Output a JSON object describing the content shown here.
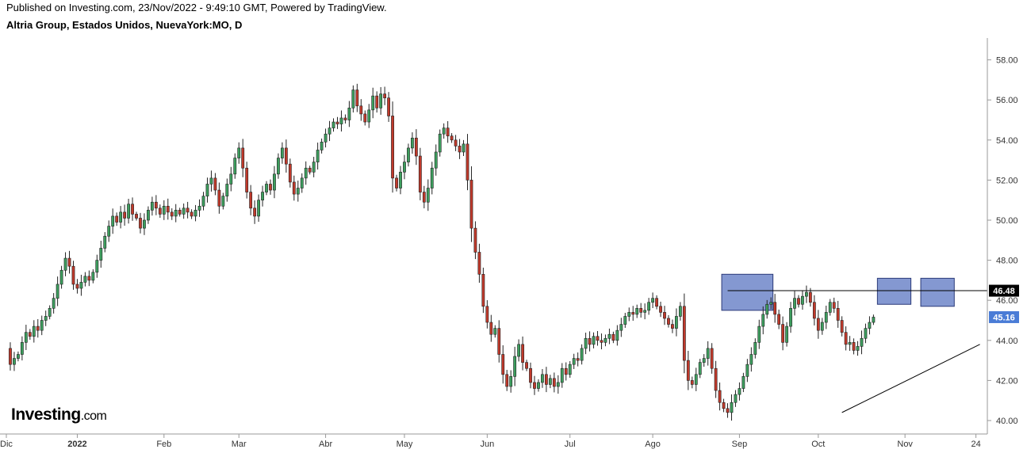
{
  "header": {
    "published": "Published on Investing.com, 23/Nov/2022 - 9:49:10 GMT, Powered by TradingView.",
    "symbol": "Altria Group, Estados Unidos, NuevaYork:MO, D"
  },
  "logo": {
    "text": "Investing",
    "suffix": ".com"
  },
  "chart_data": {
    "type": "candlestick",
    "ylim": [
      39.6,
      58.8
    ],
    "y_ticks": [
      "40.00",
      "42.00",
      "44.00",
      "46.00",
      "48.00",
      "50.00",
      "52.00",
      "54.00",
      "56.00",
      "58.00"
    ],
    "x_ticks": [
      {
        "label": "Dic",
        "t": 0,
        "bold": false
      },
      {
        "label": "2022",
        "t": 18,
        "bold": true
      },
      {
        "label": "Feb",
        "t": 40,
        "bold": false
      },
      {
        "label": "Mar",
        "t": 59,
        "bold": false
      },
      {
        "label": "Abr",
        "t": 81,
        "bold": false
      },
      {
        "label": "May",
        "t": 101,
        "bold": false
      },
      {
        "label": "Jun",
        "t": 122,
        "bold": false
      },
      {
        "label": "Jul",
        "t": 143,
        "bold": false
      },
      {
        "label": "Ago",
        "t": 164,
        "bold": false
      },
      {
        "label": "Sep",
        "t": 186,
        "bold": false
      },
      {
        "label": "Oct",
        "t": 206,
        "bold": false
      },
      {
        "label": "Nov",
        "t": 228,
        "bold": false
      },
      {
        "label": "24",
        "t": 246,
        "bold": false
      }
    ],
    "closes": [
      43.6,
      42.8,
      43.1,
      43.3,
      43.9,
      44.4,
      44.2,
      44.7,
      44.5,
      45.0,
      45.2,
      45.6,
      46.1,
      46.8,
      47.5,
      48.1,
      47.7,
      46.8,
      46.6,
      46.9,
      47.2,
      47.0,
      47.4,
      48.0,
      48.6,
      49.2,
      49.7,
      50.2,
      49.9,
      50.4,
      50.1,
      50.8,
      50.3,
      50.1,
      49.6,
      50.0,
      50.5,
      50.9,
      50.6,
      50.3,
      50.7,
      50.4,
      50.2,
      50.5,
      50.3,
      50.6,
      50.4,
      50.2,
      50.5,
      50.7,
      51.2,
      51.8,
      52.1,
      51.5,
      50.7,
      51.2,
      51.8,
      52.3,
      53.1,
      53.6,
      52.6,
      51.4,
      50.6,
      50.2,
      51.0,
      51.4,
      51.8,
      51.5,
      52.3,
      53.1,
      53.6,
      52.8,
      51.9,
      51.3,
      51.6,
      52.1,
      52.6,
      52.4,
      52.9,
      53.5,
      53.9,
      54.3,
      54.6,
      54.9,
      54.8,
      55.1,
      55.0,
      55.6,
      56.5,
      55.7,
      55.3,
      54.9,
      55.5,
      56.2,
      55.6,
      56.3,
      56.1,
      55.2,
      52.1,
      51.6,
      52.4,
      52.9,
      53.6,
      54.1,
      53.2,
      51.4,
      50.9,
      51.6,
      52.6,
      53.4,
      54.3,
      54.6,
      54.2,
      54.0,
      53.7,
      53.4,
      53.8,
      52.0,
      49.6,
      48.4,
      47.3,
      45.7,
      44.9,
      44.3,
      44.6,
      43.3,
      42.3,
      41.7,
      42.2,
      43.2,
      43.8,
      42.9,
      42.6,
      41.9,
      41.6,
      41.9,
      42.3,
      41.8,
      42.1,
      41.7,
      41.9,
      42.6,
      42.3,
      42.8,
      43.1,
      43.0,
      43.6,
      44.1,
      43.8,
      44.2,
      44.0,
      43.9,
      44.1,
      44.3,
      44.0,
      44.5,
      44.8,
      45.2,
      45.4,
      45.3,
      45.6,
      45.4,
      45.5,
      45.9,
      46.1,
      45.7,
      45.4,
      45.1,
      44.8,
      44.6,
      45.2,
      45.7,
      43.0,
      42.0,
      41.8,
      42.3,
      42.9,
      43.1,
      43.6,
      42.6,
      41.5,
      40.9,
      40.6,
      40.4,
      40.9,
      41.3,
      41.6,
      42.2,
      42.8,
      43.3,
      43.9,
      44.7,
      45.3,
      45.8,
      45.9,
      45.3,
      44.8,
      43.9,
      44.7,
      45.6,
      46.1,
      45.8,
      46.2,
      46.4,
      45.9,
      45.1,
      44.5,
      44.9,
      45.4,
      45.9,
      45.6,
      45.0,
      44.4,
      43.8,
      43.9,
      43.5,
      43.7,
      44.1,
      44.6,
      44.9,
      45.16
    ],
    "price_line": {
      "value": 46.48,
      "label": "46.48"
    },
    "last_price": {
      "value": 45.16,
      "label": "45.16"
    },
    "resistance_line": {
      "y": 46.48,
      "t_start": 183,
      "t_end": 247
    },
    "support_line": {
      "t_start": 212,
      "y_start": 40.4,
      "t_end": 247,
      "y_end": 43.8
    },
    "zones": [
      {
        "t_start": 181.5,
        "t_end": 194.5,
        "y_low": 45.5,
        "y_high": 47.3
      },
      {
        "t_start": 221,
        "t_end": 229.5,
        "y_low": 45.8,
        "y_high": 47.1
      },
      {
        "t_start": 232,
        "t_end": 240.5,
        "y_low": 45.7,
        "y_high": 47.1
      }
    ],
    "colors": {
      "up": "#3d9e5e",
      "down": "#c0392b",
      "zone": "#6f86c9",
      "last_tag": "#4a7cd6",
      "price_tag": "#000000",
      "axis_text": "#333333"
    }
  }
}
